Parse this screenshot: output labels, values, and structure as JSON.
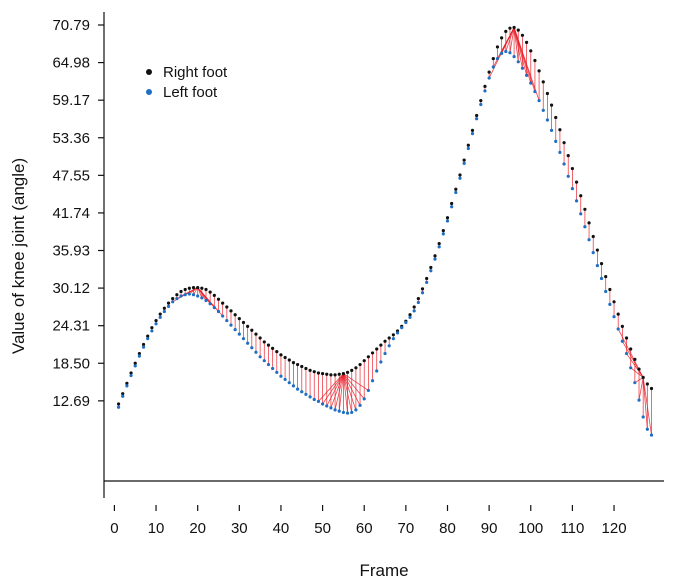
{
  "chart_data": {
    "type": "scatter",
    "title": "",
    "xlabel": "Frame",
    "ylabel": "Value of knee joint (angle)",
    "x_ticks": [
      "0",
      "10",
      "20",
      "30",
      "40",
      "50",
      "60",
      "70",
      "80",
      "90",
      "100",
      "110",
      "120"
    ],
    "y_ticks": [
      "12.69",
      "18.50",
      "24.31",
      "30.12",
      "35.93",
      "41.74",
      "47.55",
      "53.36",
      "59.17",
      "64.98",
      "70.79"
    ],
    "xlim": [
      -2.5,
      132
    ],
    "ylim": [
      0.3,
      72.8
    ],
    "grid": false,
    "legend_position": "top-left",
    "colors": {
      "right_foot": "#111111",
      "left_foot": "#1f6fc4",
      "connector": "#e8202a",
      "axis": "#111111"
    },
    "series": [
      {
        "name": "Right foot",
        "points": [
          [
            1,
            12.2
          ],
          [
            2,
            13.8
          ],
          [
            3,
            15.4
          ],
          [
            4,
            17
          ],
          [
            5,
            18.5
          ],
          [
            6,
            20
          ],
          [
            7,
            21.4
          ],
          [
            8,
            22.7
          ],
          [
            9,
            24
          ],
          [
            10,
            25.1
          ],
          [
            11,
            26.1
          ],
          [
            12,
            27
          ],
          [
            13,
            27.8
          ],
          [
            14,
            28.5
          ],
          [
            15,
            29.1
          ],
          [
            16,
            29.6
          ],
          [
            17,
            29.9
          ],
          [
            18,
            30.1
          ],
          [
            19,
            30.2
          ],
          [
            20,
            30.2
          ],
          [
            21,
            30.1
          ],
          [
            22,
            29.9
          ],
          [
            23,
            29.5
          ],
          [
            24,
            29
          ],
          [
            25,
            28.4
          ],
          [
            26,
            27.8
          ],
          [
            27,
            27.2
          ],
          [
            28,
            26.6
          ],
          [
            29,
            26
          ],
          [
            30,
            25.4
          ],
          [
            31,
            24.8
          ],
          [
            32,
            24.2
          ],
          [
            33,
            23.6
          ],
          [
            34,
            23
          ],
          [
            35,
            22.4
          ],
          [
            36,
            21.8
          ],
          [
            37,
            21.3
          ],
          [
            38,
            20.8
          ],
          [
            39,
            20.3
          ],
          [
            40,
            19.8
          ],
          [
            41,
            19.4
          ],
          [
            42,
            19
          ],
          [
            43,
            18.6
          ],
          [
            44,
            18.3
          ],
          [
            45,
            18
          ],
          [
            46,
            17.7
          ],
          [
            47,
            17.4
          ],
          [
            48,
            17.2
          ],
          [
            49,
            17
          ],
          [
            50,
            16.9
          ],
          [
            51,
            16.8
          ],
          [
            52,
            16.7
          ],
          [
            53,
            16.7
          ],
          [
            54,
            16.8
          ],
          [
            55,
            16.9
          ],
          [
            56,
            17.1
          ],
          [
            57,
            17.4
          ],
          [
            58,
            17.8
          ],
          [
            59,
            18.3
          ],
          [
            60,
            18.9
          ],
          [
            61,
            19.5
          ],
          [
            62,
            20.1
          ],
          [
            63,
            20.7
          ],
          [
            64,
            21.3
          ],
          [
            65,
            21.9
          ],
          [
            66,
            22.4
          ],
          [
            67,
            22.9
          ],
          [
            68,
            23.5
          ],
          [
            69,
            24.2
          ],
          [
            70,
            25
          ],
          [
            71,
            26
          ],
          [
            72,
            27.2
          ],
          [
            73,
            28.5
          ],
          [
            74,
            30
          ],
          [
            75,
            31.6
          ],
          [
            76,
            33.3
          ],
          [
            77,
            35.1
          ],
          [
            78,
            37
          ],
          [
            79,
            39
          ],
          [
            80,
            41
          ],
          [
            81,
            43.2
          ],
          [
            82,
            45.4
          ],
          [
            83,
            47.6
          ],
          [
            84,
            49.9
          ],
          [
            85,
            52.2
          ],
          [
            86,
            54.5
          ],
          [
            87,
            56.8
          ],
          [
            88,
            59.1
          ],
          [
            89,
            61.3
          ],
          [
            90,
            63.5
          ],
          [
            91,
            65.6
          ],
          [
            92,
            67.4
          ],
          [
            93,
            68.8
          ],
          [
            94,
            69.8
          ],
          [
            95,
            70.3
          ],
          [
            96,
            70.4
          ],
          [
            97,
            70
          ],
          [
            98,
            69.2
          ],
          [
            99,
            68.1
          ],
          [
            100,
            66.8
          ],
          [
            101,
            65.3
          ],
          [
            102,
            63.7
          ],
          [
            103,
            62
          ],
          [
            104,
            60.2
          ],
          [
            105,
            58.4
          ],
          [
            106,
            56.5
          ],
          [
            107,
            54.6
          ],
          [
            108,
            52.6
          ],
          [
            109,
            50.6
          ],
          [
            110,
            48.6
          ],
          [
            111,
            46.5
          ],
          [
            112,
            44.4
          ],
          [
            113,
            42.3
          ],
          [
            114,
            40.2
          ],
          [
            115,
            38.1
          ],
          [
            116,
            36
          ],
          [
            117,
            33.9
          ],
          [
            118,
            31.9
          ],
          [
            119,
            29.9
          ],
          [
            120,
            28
          ],
          [
            121,
            26.1
          ],
          [
            122,
            24.2
          ],
          [
            123,
            22.4
          ],
          [
            124,
            20.7
          ],
          [
            125,
            19.1
          ],
          [
            126,
            17.6
          ],
          [
            127,
            16.3
          ],
          [
            128,
            15.3
          ],
          [
            129,
            14.6
          ]
        ]
      },
      {
        "name": "Left foot",
        "points": [
          [
            1,
            11.7
          ],
          [
            2,
            13.4
          ],
          [
            3,
            15
          ],
          [
            4,
            16.6
          ],
          [
            5,
            18.1
          ],
          [
            6,
            19.6
          ],
          [
            7,
            21
          ],
          [
            8,
            22.3
          ],
          [
            9,
            23.5
          ],
          [
            10,
            24.6
          ],
          [
            11,
            25.6
          ],
          [
            12,
            26.5
          ],
          [
            13,
            27.3
          ],
          [
            14,
            28
          ],
          [
            15,
            28.5
          ],
          [
            16,
            28.9
          ],
          [
            17,
            29.1
          ],
          [
            18,
            29.2
          ],
          [
            19,
            29.1
          ],
          [
            20,
            28.9
          ],
          [
            21,
            28.6
          ],
          [
            22,
            28.2
          ],
          [
            23,
            27.7
          ],
          [
            24,
            27.1
          ],
          [
            25,
            26.5
          ],
          [
            26,
            25.8
          ],
          [
            27,
            25.1
          ],
          [
            28,
            24.4
          ],
          [
            29,
            23.7
          ],
          [
            30,
            23
          ],
          [
            31,
            22.3
          ],
          [
            32,
            21.6
          ],
          [
            33,
            20.9
          ],
          [
            34,
            20.2
          ],
          [
            35,
            19.5
          ],
          [
            36,
            18.9
          ],
          [
            37,
            18.3
          ],
          [
            38,
            17.7
          ],
          [
            39,
            17.1
          ],
          [
            40,
            16.5
          ],
          [
            41,
            16
          ],
          [
            42,
            15.5
          ],
          [
            43,
            15
          ],
          [
            44,
            14.5
          ],
          [
            45,
            14.1
          ],
          [
            46,
            13.7
          ],
          [
            47,
            13.3
          ],
          [
            48,
            12.9
          ],
          [
            49,
            12.6
          ],
          [
            50,
            12.2
          ],
          [
            51,
            11.9
          ],
          [
            52,
            11.6
          ],
          [
            53,
            11.3
          ],
          [
            54,
            11.1
          ],
          [
            55,
            10.9
          ],
          [
            56,
            10.8
          ],
          [
            57,
            10.9
          ],
          [
            58,
            11.3
          ],
          [
            59,
            12
          ],
          [
            60,
            13
          ],
          [
            61,
            14.3
          ],
          [
            62,
            15.8
          ],
          [
            63,
            17.3
          ],
          [
            64,
            18.7
          ],
          [
            65,
            20
          ],
          [
            66,
            21.2
          ],
          [
            67,
            22.3
          ],
          [
            68,
            23.2
          ],
          [
            69,
            24
          ],
          [
            70,
            24.8
          ],
          [
            71,
            25.6
          ],
          [
            72,
            26.6
          ],
          [
            73,
            27.9
          ],
          [
            74,
            29.4
          ],
          [
            75,
            31
          ],
          [
            76,
            32.8
          ],
          [
            77,
            34.6
          ],
          [
            78,
            36.5
          ],
          [
            79,
            38.5
          ],
          [
            80,
            40.5
          ],
          [
            81,
            42.7
          ],
          [
            82,
            44.9
          ],
          [
            83,
            47.1
          ],
          [
            84,
            49.4
          ],
          [
            85,
            51.7
          ],
          [
            86,
            54
          ],
          [
            87,
            56.3
          ],
          [
            88,
            58.5
          ],
          [
            89,
            60.6
          ],
          [
            90,
            62.6
          ],
          [
            91,
            64.3
          ],
          [
            92,
            65.6
          ],
          [
            93,
            66.4
          ],
          [
            94,
            66.7
          ],
          [
            95,
            66.5
          ],
          [
            96,
            65.9
          ],
          [
            97,
            65.1
          ],
          [
            98,
            64.1
          ],
          [
            99,
            63
          ],
          [
            100,
            61.8
          ],
          [
            101,
            60.5
          ],
          [
            102,
            59.1
          ],
          [
            103,
            57.6
          ],
          [
            104,
            56.1
          ],
          [
            105,
            54.5
          ],
          [
            106,
            52.8
          ],
          [
            107,
            51.1
          ],
          [
            108,
            49.3
          ],
          [
            109,
            47.4
          ],
          [
            110,
            45.5
          ],
          [
            111,
            43.6
          ],
          [
            112,
            41.6
          ],
          [
            113,
            39.6
          ],
          [
            114,
            37.6
          ],
          [
            115,
            35.6
          ],
          [
            116,
            33.6
          ],
          [
            117,
            31.6
          ],
          [
            118,
            29.6
          ],
          [
            119,
            27.6
          ],
          [
            120,
            25.7
          ],
          [
            121,
            23.8
          ],
          [
            122,
            21.9
          ],
          [
            123,
            20
          ],
          [
            124,
            17.8
          ],
          [
            125,
            15.5
          ],
          [
            126,
            12.8
          ],
          [
            127,
            10.2
          ],
          [
            128,
            8.3
          ],
          [
            129,
            7.4
          ]
        ]
      }
    ]
  }
}
